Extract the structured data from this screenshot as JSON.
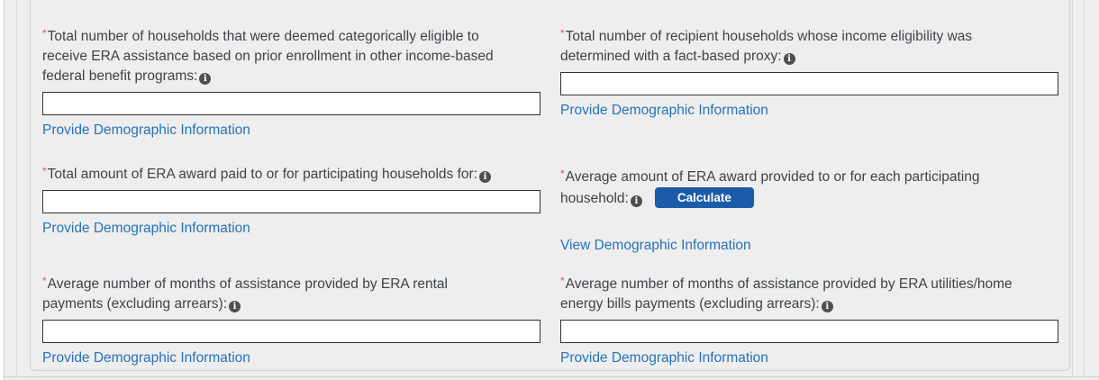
{
  "colors": {
    "background": "#eeeeee",
    "panel_border": "#d4d4d4",
    "link_blue": "#2673b8",
    "button_blue": "#1b5ca8",
    "required_red": "#e0506b",
    "input_border": "#333333",
    "info_icon_bg": "#4f4f4f"
  },
  "icons": {
    "info": "i"
  },
  "form": {
    "fields": [
      {
        "required_marker": "*",
        "label": "Total number of households that were deemed categorically eligible to\nreceive ERA assistance based on prior enrollment in other income-based\nfederal benefit programs:",
        "input_value": "",
        "link_label": "Provide Demographic Information"
      },
      {
        "required_marker": "*",
        "label": "Total number of recipient households whose income eligibility was\ndetermined with a fact-based proxy:",
        "input_value": "",
        "link_label": "Provide Demographic Information"
      },
      {
        "required_marker": "*",
        "label": "Total amount of ERA award paid to or for participating households for:",
        "input_value": "",
        "link_label": "Provide Demographic Information"
      },
      {
        "required_marker": "*",
        "label": "Average amount of ERA award provided to or for each participating\nhousehold:",
        "button_label": "Calculate",
        "link_label": "View Demographic Information"
      },
      {
        "required_marker": "*",
        "label": "Average number of months of assistance provided by ERA rental\npayments (excluding arrears):",
        "input_value": "",
        "link_label": "Provide Demographic Information"
      },
      {
        "required_marker": "*",
        "label": "Average number of months of assistance provided by ERA utilities/home\nenergy bills payments (excluding arrears):",
        "input_value": "",
        "link_label": "Provide Demographic Information"
      }
    ]
  }
}
